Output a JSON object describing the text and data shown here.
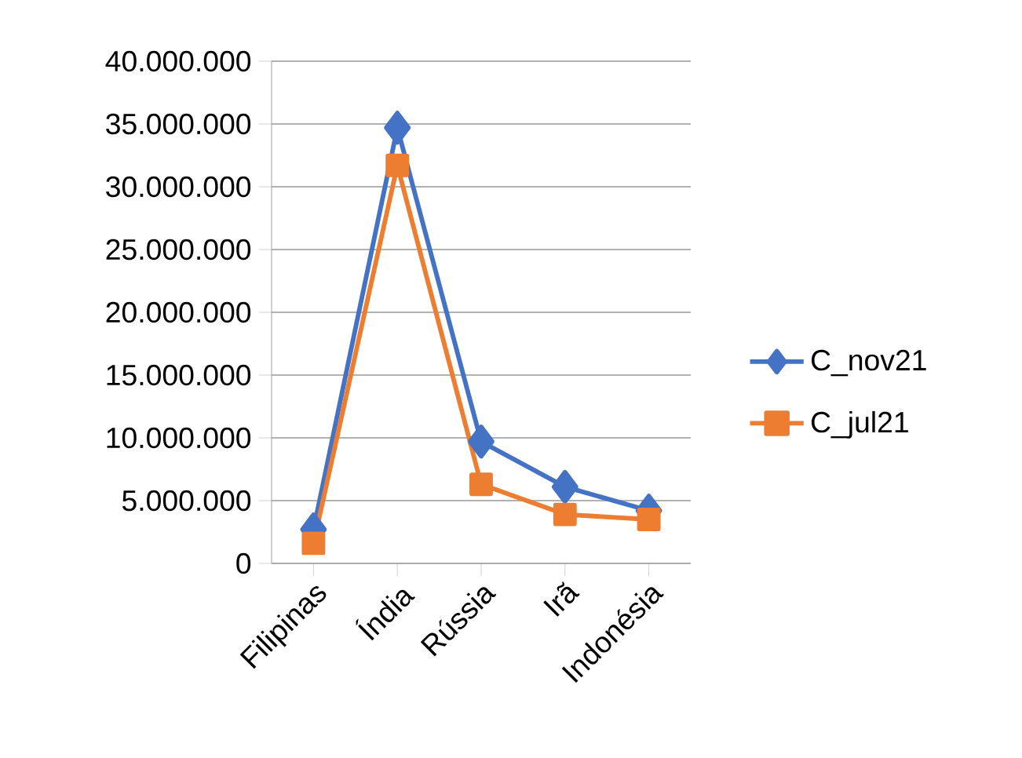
{
  "chart_data": {
    "type": "line",
    "categories": [
      "Filipinas",
      "Índia",
      "Rússia",
      "Irã",
      "Indonésia"
    ],
    "series": [
      {
        "name": "C_nov21",
        "color": "#4472c4",
        "marker": "diamond",
        "values": [
          2700000,
          34700000,
          9700000,
          6100000,
          4200000
        ]
      },
      {
        "name": "C_jul21",
        "color": "#ed7d31",
        "marker": "square",
        "values": [
          1600000,
          31700000,
          6300000,
          3900000,
          3500000
        ]
      }
    ],
    "ylim": [
      0,
      40000000
    ],
    "yticks": [
      {
        "value": 0,
        "label": "0"
      },
      {
        "value": 5000000,
        "label": "5.000.000"
      },
      {
        "value": 10000000,
        "label": "10.000.000"
      },
      {
        "value": 15000000,
        "label": "15.000.000"
      },
      {
        "value": 20000000,
        "label": "20.000.000"
      },
      {
        "value": 25000000,
        "label": "25.000.000"
      },
      {
        "value": 30000000,
        "label": "30.000.000"
      },
      {
        "value": 35000000,
        "label": "35.000.000"
      },
      {
        "value": 40000000,
        "label": "40.000.000"
      }
    ],
    "grid": "y",
    "legend": "right",
    "line_style": "solid"
  }
}
